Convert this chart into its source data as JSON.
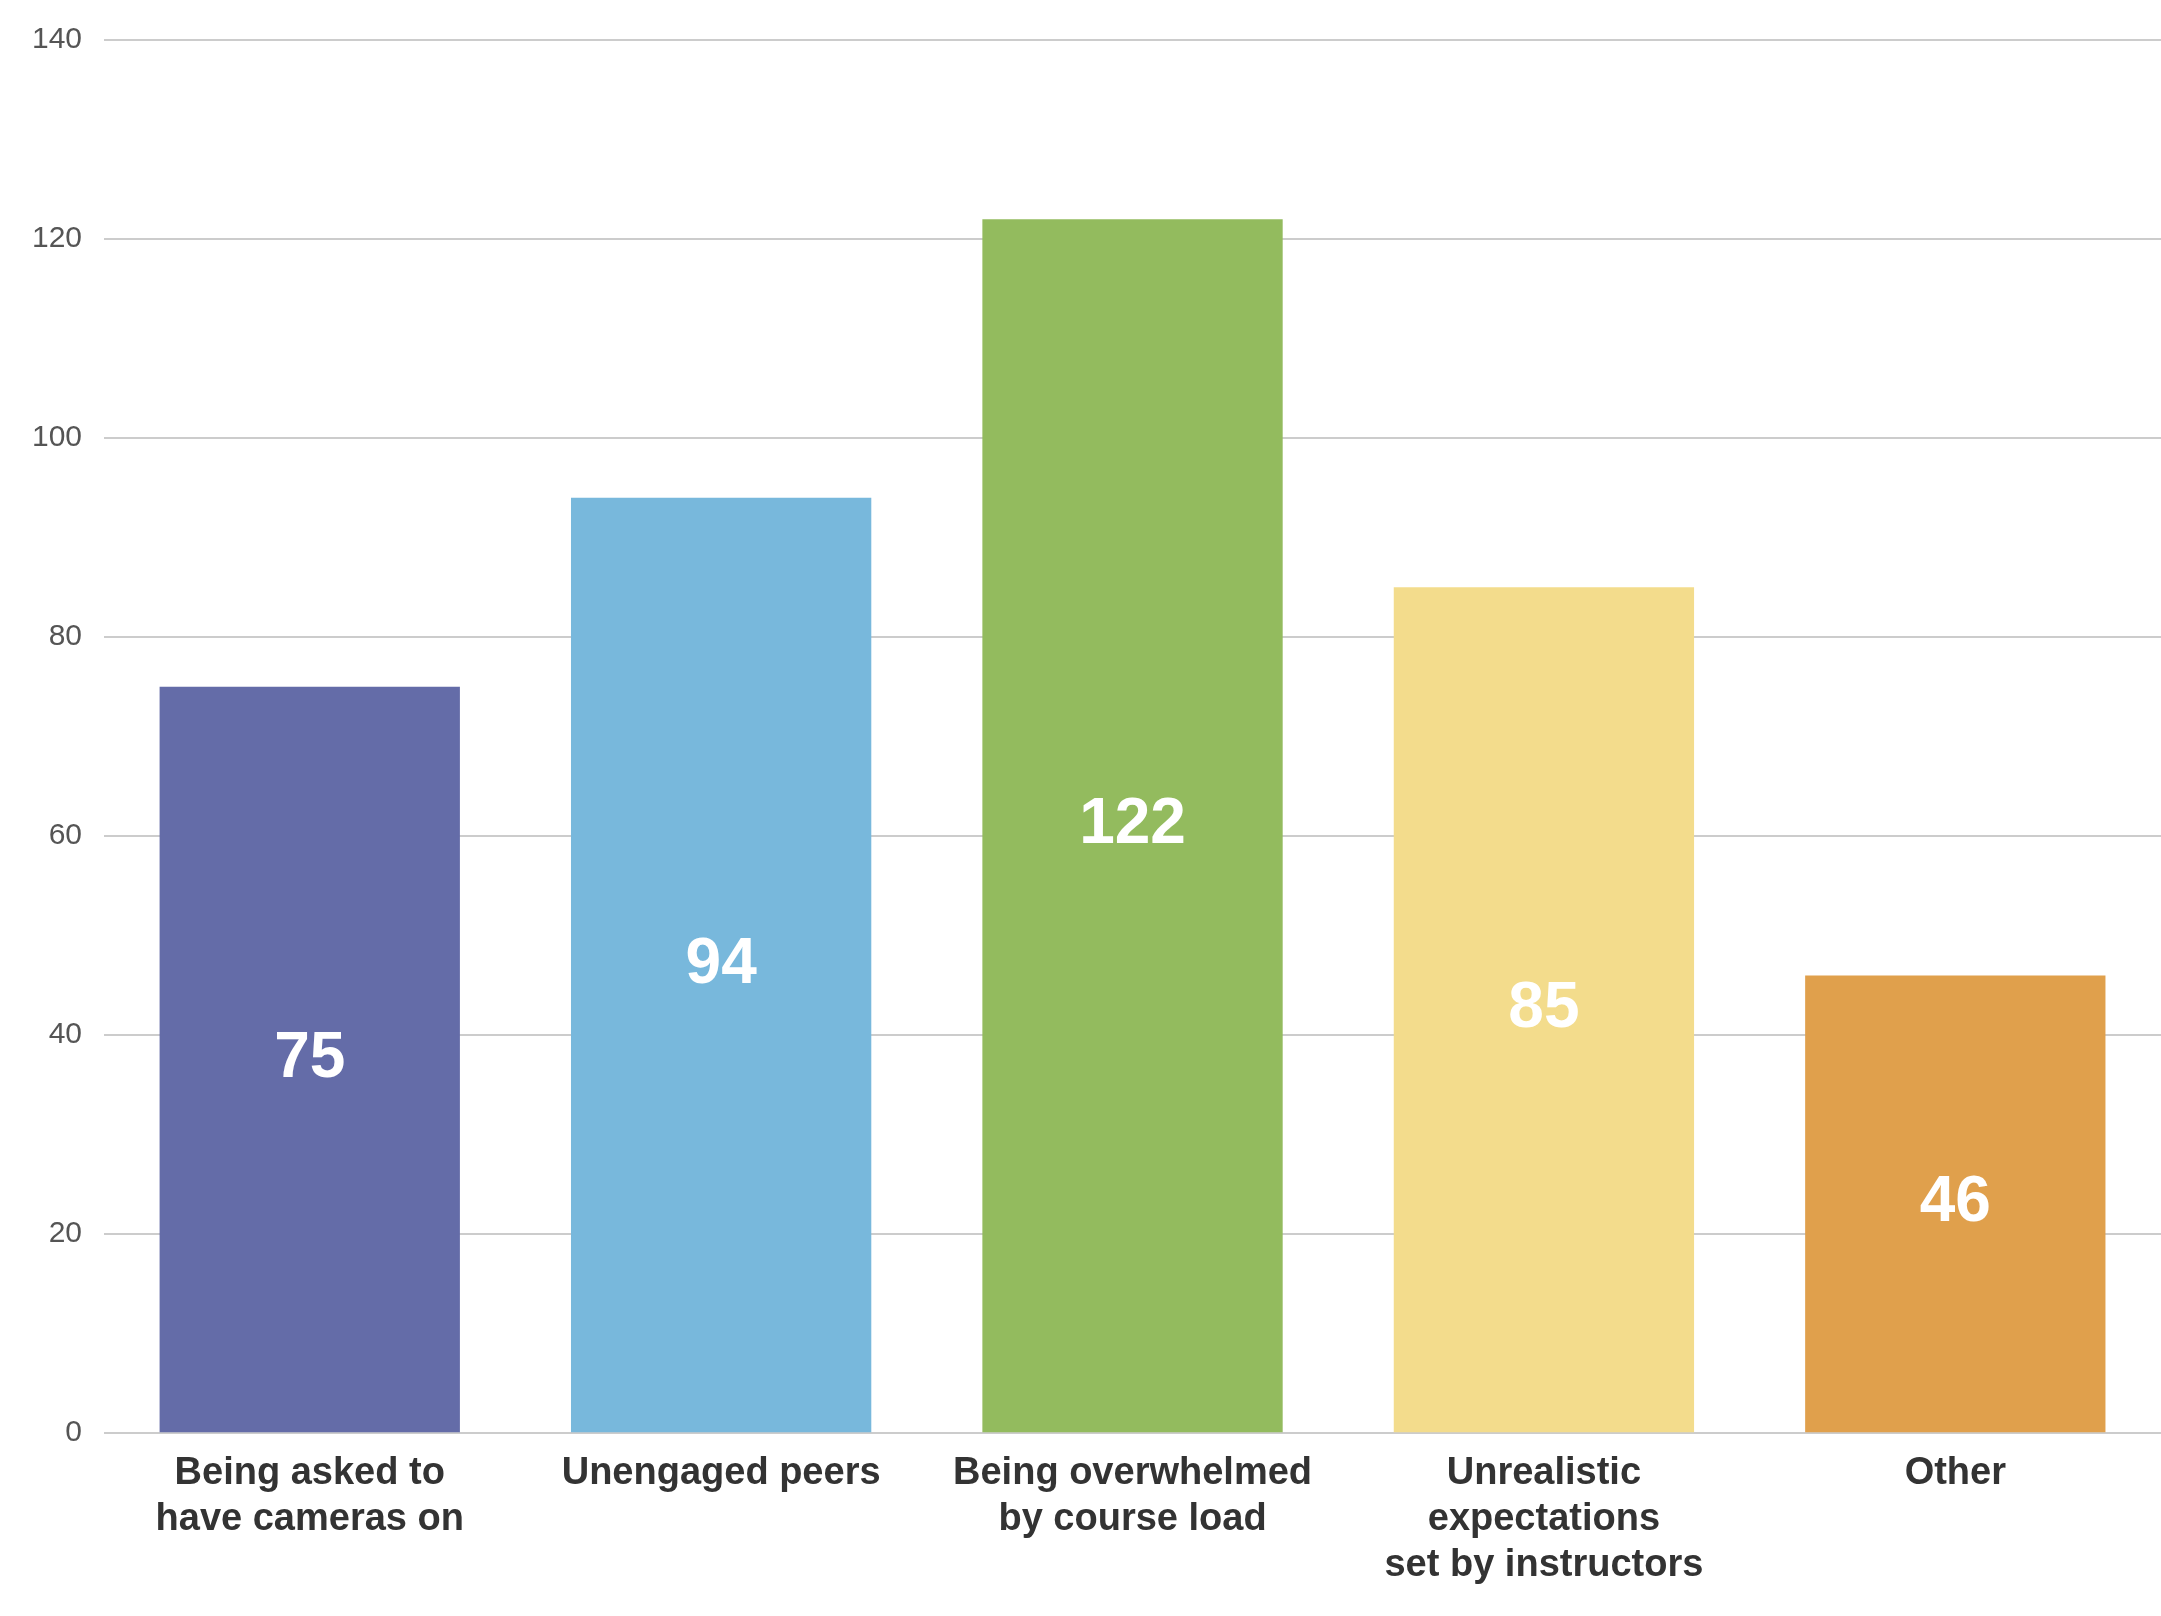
{
  "chart_data": {
    "type": "bar",
    "categories": [
      "Being asked to\nhave cameras on",
      "Unengaged peers",
      "Being overwhelmed\nby course load",
      "Unrealistic\nexpectations\nset by instructors",
      "Other"
    ],
    "values": [
      75,
      94,
      122,
      85,
      46
    ],
    "colors": [
      "#646ca8",
      "#78b8dc",
      "#93bb5e",
      "#f3dc8c",
      "#e0a04c"
    ],
    "ylim": [
      0,
      140
    ],
    "yticks": [
      0,
      20,
      40,
      60,
      80,
      100,
      120,
      140
    ],
    "grid": "y",
    "legend": false,
    "data_labels": true
  }
}
